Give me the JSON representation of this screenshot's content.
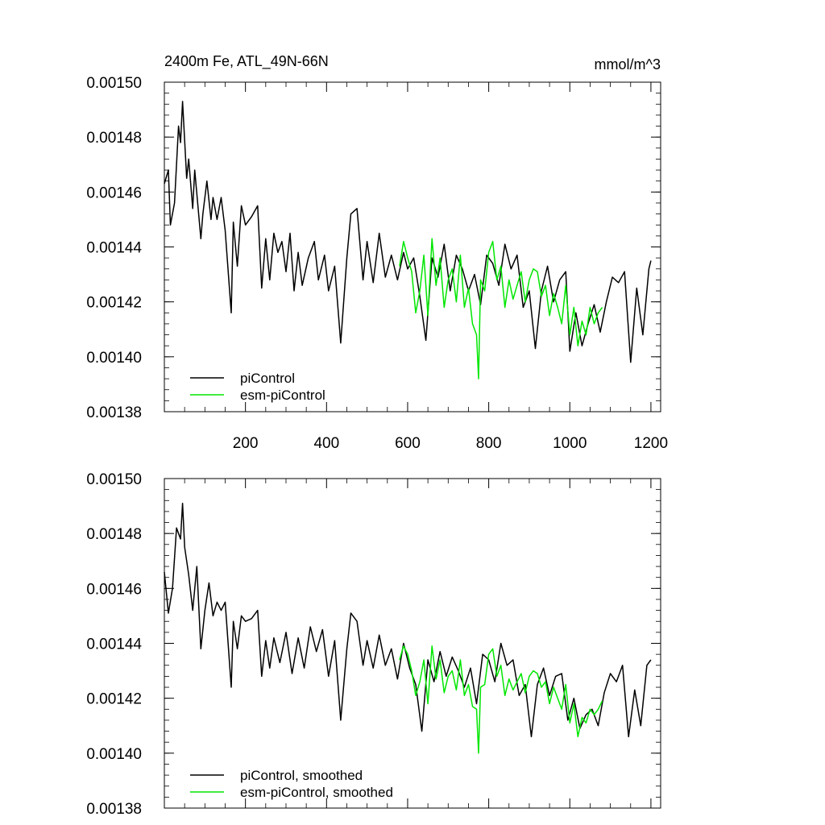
{
  "page": {
    "background": "#ffffff"
  },
  "colors": {
    "piControl": "#000000",
    "esm": "#00e600",
    "frame": "#000000"
  },
  "chart_data": [
    {
      "type": "line",
      "title": "2400m Fe, ATL_49N-66N",
      "units": "mmol/m^3",
      "grid": false,
      "legend_placement": "bottom-left",
      "xlim": [
        0,
        1224
      ],
      "ylim": [
        0.00138,
        0.0015
      ],
      "x_ticks": [
        200,
        400,
        600,
        800,
        1000,
        1200
      ],
      "x_tick_labels": [
        "200",
        "400",
        "600",
        "800",
        "1000",
        "1200"
      ],
      "y_ticks": [
        0.00138,
        0.0014,
        0.00142,
        0.00144,
        0.00146,
        0.00148,
        0.0015
      ],
      "y_tick_labels": [
        "0.00138",
        "0.00140",
        "0.00142",
        "0.00144",
        "0.00146",
        "0.00148",
        "0.00150"
      ],
      "series": [
        {
          "name": "piControl",
          "color": "#000000",
          "x": [
            0,
            10,
            15,
            25,
            35,
            40,
            45,
            55,
            60,
            70,
            75,
            90,
            95,
            105,
            115,
            120,
            130,
            140,
            150,
            165,
            170,
            180,
            190,
            200,
            215,
            230,
            240,
            250,
            260,
            270,
            280,
            290,
            300,
            310,
            320,
            330,
            340,
            355,
            370,
            380,
            395,
            405,
            420,
            435,
            450,
            460,
            475,
            490,
            500,
            515,
            530,
            545,
            560,
            575,
            590,
            600,
            615,
            630,
            645,
            660,
            675,
            690,
            705,
            720,
            735,
            750,
            765,
            780,
            795,
            810,
            825,
            840,
            855,
            870,
            885,
            900,
            915,
            930,
            945,
            960,
            975,
            990,
            1000,
            1015,
            1030,
            1045,
            1060,
            1075,
            1090,
            1105,
            1120,
            1135,
            1150,
            1165,
            1180,
            1195,
            1200
          ],
          "y": [
            0.001463,
            0.001468,
            0.001448,
            0.001456,
            0.001484,
            0.001478,
            0.001493,
            0.001465,
            0.001472,
            0.001454,
            0.001468,
            0.001443,
            0.001452,
            0.001464,
            0.00145,
            0.001458,
            0.00145,
            0.001458,
            0.001446,
            0.001416,
            0.001449,
            0.001433,
            0.001455,
            0.001448,
            0.001451,
            0.001455,
            0.001425,
            0.001443,
            0.001428,
            0.001445,
            0.001438,
            0.001442,
            0.001431,
            0.001445,
            0.001424,
            0.001438,
            0.001426,
            0.001436,
            0.001442,
            0.001428,
            0.001437,
            0.001424,
            0.001433,
            0.001405,
            0.001436,
            0.001452,
            0.001454,
            0.001428,
            0.001442,
            0.001427,
            0.001445,
            0.001429,
            0.001437,
            0.001428,
            0.001438,
            0.001432,
            0.001436,
            0.001422,
            0.001406,
            0.001436,
            0.001429,
            0.001441,
            0.001424,
            0.001437,
            0.001432,
            0.001424,
            0.00143,
            0.001419,
            0.001437,
            0.001434,
            0.001426,
            0.001441,
            0.001432,
            0.001437,
            0.001418,
            0.001424,
            0.001403,
            0.001424,
            0.001433,
            0.00142,
            0.001428,
            0.001431,
            0.001402,
            0.001416,
            0.001404,
            0.001412,
            0.001419,
            0.001409,
            0.00142,
            0.001429,
            0.001427,
            0.001431,
            0.001398,
            0.001425,
            0.001408,
            0.001432,
            0.001435
          ]
        },
        {
          "name": "esm-piControl",
          "color": "#00e600",
          "x": [
            580,
            590,
            600,
            610,
            620,
            630,
            640,
            650,
            660,
            670,
            680,
            690,
            700,
            710,
            720,
            730,
            740,
            750,
            760,
            770,
            775,
            780,
            790,
            800,
            810,
            820,
            830,
            840,
            850,
            860,
            870,
            880,
            890,
            900,
            910,
            920,
            930,
            940,
            950,
            960,
            970,
            980,
            990,
            1000,
            1010,
            1020,
            1030,
            1040,
            1050,
            1060,
            1070,
            1080
          ],
          "y": [
            0.001433,
            0.001442,
            0.001436,
            0.001431,
            0.001416,
            0.001424,
            0.001437,
            0.001415,
            0.001443,
            0.001426,
            0.001436,
            0.001418,
            0.001428,
            0.001432,
            0.00142,
            0.001437,
            0.001418,
            0.001425,
            0.001412,
            0.001408,
            0.001392,
            0.001428,
            0.001424,
            0.001438,
            0.001442,
            0.001428,
            0.001433,
            0.001418,
            0.001428,
            0.001421,
            0.001426,
            0.001431,
            0.00142,
            0.001428,
            0.001432,
            0.001431,
            0.001422,
            0.001426,
            0.001415,
            0.001423,
            0.001418,
            0.001412,
            0.001426,
            0.001408,
            0.001418,
            0.001404,
            0.001413,
            0.001408,
            0.001418,
            0.001412,
            0.001416,
            0.001418
          ]
        }
      ],
      "legend": [
        {
          "label": "piControl",
          "color": "#000000"
        },
        {
          "label": "esm-piControl",
          "color": "#00e600"
        }
      ]
    },
    {
      "type": "line",
      "title": "",
      "units": "",
      "grid": false,
      "legend_placement": "bottom-left",
      "xlim": [
        0,
        1224
      ],
      "ylim": [
        0.00138,
        0.0015
      ],
      "x_ticks": [
        200,
        400,
        600,
        800,
        1000,
        1200
      ],
      "x_tick_labels": [],
      "y_ticks": [
        0.00138,
        0.0014,
        0.00142,
        0.00144,
        0.00146,
        0.00148,
        0.0015
      ],
      "y_tick_labels": [
        "0.00138",
        "0.00140",
        "0.00142",
        "0.00144",
        "0.00146",
        "0.00148",
        "0.00150"
      ],
      "series": [
        {
          "name": "piControl, smoothed",
          "color": "#000000",
          "x": [
            0,
            10,
            20,
            30,
            40,
            45,
            50,
            60,
            70,
            80,
            90,
            100,
            110,
            120,
            130,
            140,
            150,
            165,
            170,
            180,
            190,
            200,
            215,
            230,
            240,
            250,
            260,
            270,
            285,
            300,
            315,
            330,
            345,
            360,
            375,
            390,
            405,
            420,
            435,
            450,
            460,
            475,
            490,
            500,
            515,
            530,
            545,
            560,
            575,
            590,
            605,
            620,
            635,
            650,
            665,
            680,
            695,
            710,
            725,
            740,
            755,
            770,
            785,
            800,
            815,
            830,
            845,
            860,
            875,
            890,
            905,
            920,
            935,
            950,
            965,
            980,
            995,
            1010,
            1025,
            1040,
            1055,
            1070,
            1085,
            1100,
            1115,
            1130,
            1145,
            1160,
            1175,
            1190,
            1200
          ],
          "y": [
            0.001466,
            0.001451,
            0.00146,
            0.001482,
            0.001478,
            0.001491,
            0.001475,
            0.001465,
            0.001452,
            0.001468,
            0.001438,
            0.001452,
            0.001462,
            0.00145,
            0.001455,
            0.001452,
            0.001455,
            0.001424,
            0.001448,
            0.001438,
            0.00145,
            0.001448,
            0.001449,
            0.001452,
            0.001428,
            0.001441,
            0.001431,
            0.001442,
            0.001433,
            0.001444,
            0.001429,
            0.001442,
            0.001431,
            0.001446,
            0.001437,
            0.001445,
            0.001428,
            0.001441,
            0.001412,
            0.001438,
            0.001451,
            0.001448,
            0.001432,
            0.001441,
            0.001431,
            0.001443,
            0.001432,
            0.001438,
            0.001427,
            0.00144,
            0.001431,
            0.001425,
            0.001408,
            0.001434,
            0.001426,
            0.001437,
            0.001428,
            0.001435,
            0.00143,
            0.001424,
            0.001431,
            0.001418,
            0.001436,
            0.001434,
            0.001426,
            0.00144,
            0.001432,
            0.001434,
            0.001421,
            0.001425,
            0.001406,
            0.001425,
            0.001431,
            0.001421,
            0.001428,
            0.001429,
            0.001412,
            0.00142,
            0.001409,
            0.001414,
            0.001416,
            0.00141,
            0.001422,
            0.001429,
            0.001426,
            0.001432,
            0.001406,
            0.001423,
            0.00141,
            0.001432,
            0.001434
          ]
        },
        {
          "name": "esm-piControl, smoothed",
          "color": "#00e600",
          "x": [
            580,
            590,
            600,
            610,
            620,
            630,
            640,
            650,
            660,
            670,
            680,
            690,
            700,
            710,
            720,
            730,
            740,
            750,
            760,
            770,
            775,
            780,
            790,
            800,
            810,
            820,
            830,
            840,
            850,
            860,
            870,
            880,
            890,
            900,
            910,
            920,
            930,
            940,
            950,
            960,
            970,
            980,
            990,
            1000,
            1010,
            1020,
            1030,
            1040,
            1050,
            1060,
            1070,
            1080
          ],
          "y": [
            0.001434,
            0.001439,
            0.001436,
            0.00143,
            0.001421,
            0.001426,
            0.001434,
            0.001418,
            0.001439,
            0.001427,
            0.001434,
            0.001422,
            0.001428,
            0.00143,
            0.001423,
            0.001434,
            0.001421,
            0.001425,
            0.001417,
            0.001416,
            0.0014,
            0.001424,
            0.001425,
            0.001436,
            0.001438,
            0.001428,
            0.001432,
            0.001421,
            0.001427,
            0.001423,
            0.001426,
            0.001429,
            0.001422,
            0.001428,
            0.00143,
            0.001429,
            0.001424,
            0.001426,
            0.001418,
            0.001424,
            0.00142,
            0.001416,
            0.001425,
            0.001411,
            0.001418,
            0.001406,
            0.001413,
            0.001411,
            0.001416,
            0.001414,
            0.001416,
            0.001419
          ]
        }
      ],
      "legend": [
        {
          "label": "piControl, smoothed",
          "color": "#000000"
        },
        {
          "label": "esm-piControl, smoothed",
          "color": "#00e600"
        }
      ]
    }
  ]
}
